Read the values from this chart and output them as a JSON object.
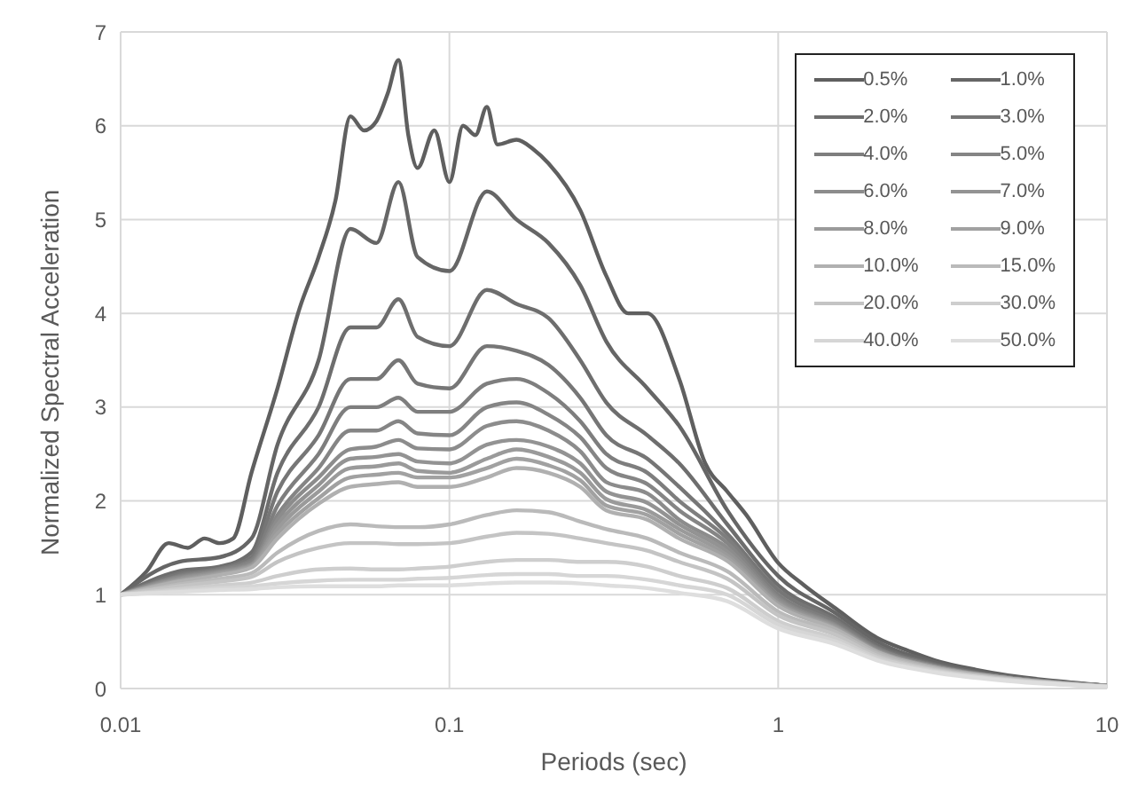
{
  "chart_data": {
    "type": "line",
    "xlabel": "Periods (sec)",
    "ylabel": "Normalized Spectral Acceleration",
    "log": "x",
    "grid": true,
    "legend": "top right",
    "xlim": [
      0.01,
      10
    ],
    "xticks": [
      0.01,
      0.1,
      1,
      10
    ],
    "ylim": [
      0,
      7
    ],
    "yticks": [
      0,
      1,
      2,
      3,
      4,
      5,
      6,
      7
    ],
    "x": [
      0.01,
      0.015,
      0.02,
      0.025,
      0.03,
      0.04,
      0.05,
      0.06,
      0.07,
      0.08,
      0.1,
      0.13,
      0.16,
      0.2,
      0.25,
      0.3,
      0.4,
      0.5,
      0.7,
      1,
      1.5,
      2,
      3,
      5,
      10
    ],
    "series": [
      {
        "name": "0.5%",
        "color": "#5f5f5f",
        "x": [
          0.01,
          0.012,
          0.014,
          0.016,
          0.018,
          0.02,
          0.022,
          0.025,
          0.03,
          0.035,
          0.04,
          0.045,
          0.05,
          0.055,
          0.06,
          0.065,
          0.07,
          0.075,
          0.08,
          0.09,
          0.1,
          0.11,
          0.12,
          0.13,
          0.14,
          0.16,
          0.18,
          0.2,
          0.25,
          0.3,
          0.35,
          0.4,
          0.5,
          0.6,
          0.7,
          0.8,
          1,
          1.2,
          1.5,
          2,
          2.5,
          3,
          4,
          5,
          7,
          10
        ],
        "values": [
          1,
          1.25,
          1.55,
          1.5,
          1.6,
          1.55,
          1.6,
          2.3,
          3.2,
          4.05,
          4.6,
          5.2,
          6.1,
          5.95,
          6.05,
          6.35,
          6.7,
          5.9,
          5.55,
          5.95,
          5.4,
          6.0,
          5.9,
          6.2,
          5.8,
          5.85,
          5.75,
          5.6,
          5.1,
          4.4,
          4.0,
          4.0,
          3.3,
          2.4,
          2.1,
          1.85,
          1.34,
          1.1,
          0.85,
          0.54,
          0.4,
          0.3,
          0.2,
          0.14,
          0.08,
          0.03
        ]
      },
      {
        "name": "1.0%",
        "color": "#666666",
        "values": [
          1,
          1.35,
          1.4,
          1.6,
          2.6,
          3.5,
          4.9,
          4.75,
          5.4,
          4.6,
          4.45,
          5.3,
          5.0,
          4.75,
          4.3,
          3.7,
          3.2,
          2.8,
          1.9,
          1.2,
          0.8,
          0.5,
          0.28,
          0.13,
          0.03
        ]
      },
      {
        "name": "2.0%",
        "color": "#6e6e6e",
        "values": [
          1,
          1.25,
          1.3,
          1.45,
          2.3,
          3.0,
          3.85,
          3.85,
          4.15,
          3.75,
          3.65,
          4.25,
          4.1,
          3.95,
          3.5,
          3.05,
          2.7,
          2.4,
          1.75,
          1.1,
          0.75,
          0.46,
          0.26,
          0.12,
          0.03
        ]
      },
      {
        "name": "3.0%",
        "color": "#767676",
        "values": [
          1,
          1.22,
          1.28,
          1.4,
          2.1,
          2.7,
          3.3,
          3.3,
          3.5,
          3.25,
          3.2,
          3.65,
          3.6,
          3.45,
          3.1,
          2.7,
          2.45,
          2.15,
          1.65,
          1.05,
          0.72,
          0.44,
          0.25,
          0.12,
          0.03
        ]
      },
      {
        "name": "4.0%",
        "color": "#7e7e7e",
        "values": [
          1,
          1.2,
          1.27,
          1.37,
          1.95,
          2.5,
          3.0,
          3.0,
          3.1,
          2.95,
          2.95,
          3.25,
          3.3,
          3.15,
          2.85,
          2.5,
          2.3,
          2.0,
          1.6,
          1.0,
          0.7,
          0.43,
          0.24,
          0.12,
          0.03
        ]
      },
      {
        "name": "5.0%",
        "color": "#858585",
        "values": [
          1,
          1.19,
          1.26,
          1.35,
          1.85,
          2.35,
          2.75,
          2.75,
          2.85,
          2.72,
          2.7,
          3.0,
          3.05,
          2.92,
          2.68,
          2.35,
          2.18,
          1.9,
          1.55,
          0.97,
          0.68,
          0.42,
          0.24,
          0.11,
          0.03
        ]
      },
      {
        "name": "6.0%",
        "color": "#8c8c8c",
        "values": [
          1,
          1.18,
          1.25,
          1.33,
          1.8,
          2.25,
          2.55,
          2.58,
          2.65,
          2.56,
          2.55,
          2.8,
          2.85,
          2.75,
          2.53,
          2.2,
          2.08,
          1.8,
          1.5,
          0.95,
          0.67,
          0.41,
          0.23,
          0.11,
          0.03
        ]
      },
      {
        "name": "7.0%",
        "color": "#939393",
        "values": [
          1,
          1.17,
          1.24,
          1.32,
          1.75,
          2.17,
          2.45,
          2.47,
          2.5,
          2.42,
          2.4,
          2.6,
          2.65,
          2.58,
          2.4,
          2.1,
          1.98,
          1.75,
          1.46,
          0.93,
          0.66,
          0.4,
          0.23,
          0.11,
          0.03
        ]
      },
      {
        "name": "8.0%",
        "color": "#9a9a9a",
        "values": [
          1,
          1.16,
          1.23,
          1.31,
          1.7,
          2.1,
          2.35,
          2.37,
          2.4,
          2.32,
          2.3,
          2.45,
          2.55,
          2.47,
          2.3,
          2.02,
          1.9,
          1.7,
          1.42,
          0.91,
          0.65,
          0.4,
          0.23,
          0.11,
          0.03
        ]
      },
      {
        "name": "9.0%",
        "color": "#a1a1a1",
        "values": [
          1,
          1.15,
          1.22,
          1.3,
          1.65,
          2.03,
          2.25,
          2.28,
          2.3,
          2.25,
          2.25,
          2.35,
          2.45,
          2.38,
          2.22,
          1.95,
          1.85,
          1.65,
          1.39,
          0.9,
          0.64,
          0.39,
          0.22,
          0.11,
          0.02
        ]
      },
      {
        "name": "10.0%",
        "color": "#b0b0b0",
        "values": [
          1,
          1.14,
          1.21,
          1.29,
          1.6,
          1.97,
          2.15,
          2.18,
          2.2,
          2.15,
          2.15,
          2.25,
          2.35,
          2.3,
          2.15,
          1.9,
          1.8,
          1.6,
          1.36,
          0.88,
          0.63,
          0.39,
          0.22,
          0.11,
          0.02
        ]
      },
      {
        "name": "15.0%",
        "color": "#bababa",
        "values": [
          1,
          1.11,
          1.17,
          1.23,
          1.45,
          1.68,
          1.75,
          1.73,
          1.72,
          1.72,
          1.75,
          1.85,
          1.9,
          1.88,
          1.78,
          1.7,
          1.6,
          1.45,
          1.25,
          0.82,
          0.6,
          0.37,
          0.21,
          0.1,
          0.02
        ]
      },
      {
        "name": "20.0%",
        "color": "#c4c4c4",
        "values": [
          1,
          1.09,
          1.14,
          1.19,
          1.35,
          1.5,
          1.55,
          1.55,
          1.54,
          1.54,
          1.55,
          1.62,
          1.66,
          1.65,
          1.6,
          1.55,
          1.47,
          1.35,
          1.17,
          0.78,
          0.57,
          0.35,
          0.2,
          0.1,
          0.02
        ]
      },
      {
        "name": "30.0%",
        "color": "#cecece",
        "values": [
          1,
          1.06,
          1.1,
          1.13,
          1.2,
          1.27,
          1.28,
          1.27,
          1.27,
          1.28,
          1.3,
          1.35,
          1.37,
          1.37,
          1.35,
          1.35,
          1.3,
          1.2,
          1.07,
          0.72,
          0.53,
          0.33,
          0.19,
          0.09,
          0.02
        ]
      },
      {
        "name": "40.0%",
        "color": "#d6d6d6",
        "values": [
          1,
          1.04,
          1.07,
          1.09,
          1.12,
          1.15,
          1.16,
          1.16,
          1.16,
          1.17,
          1.18,
          1.21,
          1.22,
          1.22,
          1.2,
          1.2,
          1.16,
          1.1,
          1.0,
          0.68,
          0.5,
          0.31,
          0.18,
          0.09,
          0.02
        ]
      },
      {
        "name": "50.0%",
        "color": "#dedede",
        "values": [
          1,
          1.03,
          1.05,
          1.06,
          1.08,
          1.09,
          1.09,
          1.09,
          1.1,
          1.1,
          1.1,
          1.12,
          1.13,
          1.13,
          1.12,
          1.1,
          1.07,
          1.02,
          0.93,
          0.64,
          0.47,
          0.3,
          0.17,
          0.08,
          0.02
        ]
      }
    ]
  }
}
